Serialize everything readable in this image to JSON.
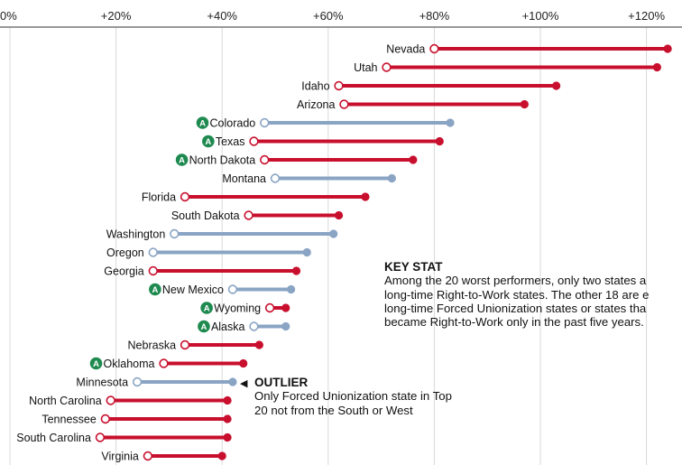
{
  "chart_data": {
    "type": "dumbbell",
    "x_ticks": [
      "0%",
      "+20%",
      "+40%",
      "+60%",
      "+80%",
      "+100%",
      "+120%"
    ],
    "x_tick_values": [
      0,
      20,
      40,
      60,
      80,
      100,
      120
    ],
    "xlim": [
      0,
      124
    ],
    "grid": true,
    "colors": {
      "red": "#c8102e",
      "blue": "#8aa4c4",
      "badge": "#1e8a50"
    },
    "rows": [
      {
        "state": "Nevada",
        "start": 80,
        "end": 124,
        "color": "red",
        "badge": false
      },
      {
        "state": "Utah",
        "start": 71,
        "end": 122,
        "color": "red",
        "badge": false
      },
      {
        "state": "Idaho",
        "start": 62,
        "end": 103,
        "color": "red",
        "badge": false
      },
      {
        "state": "Arizona",
        "start": 63,
        "end": 97,
        "color": "red",
        "badge": false
      },
      {
        "state": "Colorado",
        "start": 48,
        "end": 83,
        "color": "blue",
        "badge": true
      },
      {
        "state": "Texas",
        "start": 46,
        "end": 81,
        "color": "red",
        "badge": true
      },
      {
        "state": "North Dakota",
        "start": 48,
        "end": 76,
        "color": "red",
        "badge": true
      },
      {
        "state": "Montana",
        "start": 50,
        "end": 72,
        "color": "blue",
        "badge": false
      },
      {
        "state": "Florida",
        "start": 33,
        "end": 67,
        "color": "red",
        "badge": false
      },
      {
        "state": "South Dakota",
        "start": 45,
        "end": 62,
        "color": "red",
        "badge": false
      },
      {
        "state": "Washington",
        "start": 31,
        "end": 61,
        "color": "blue",
        "badge": false
      },
      {
        "state": "Oregon",
        "start": 27,
        "end": 56,
        "color": "blue",
        "badge": false
      },
      {
        "state": "Georgia",
        "start": 27,
        "end": 54,
        "color": "red",
        "badge": false
      },
      {
        "state": "New Mexico",
        "start": 42,
        "end": 53,
        "color": "blue",
        "badge": true
      },
      {
        "state": "Wyoming",
        "start": 49,
        "end": 52,
        "color": "red",
        "badge": true
      },
      {
        "state": "Alaska",
        "start": 46,
        "end": 52,
        "color": "blue",
        "badge": true
      },
      {
        "state": "Nebraska",
        "start": 33,
        "end": 47,
        "color": "red",
        "badge": false
      },
      {
        "state": "Oklahoma",
        "start": 29,
        "end": 44,
        "color": "red",
        "badge": true
      },
      {
        "state": "Minnesota",
        "start": 24,
        "end": 42,
        "color": "blue",
        "badge": false
      },
      {
        "state": "North Carolina",
        "start": 19,
        "end": 41,
        "color": "red",
        "badge": false
      },
      {
        "state": "Tennessee",
        "start": 18,
        "end": 41,
        "color": "red",
        "badge": false
      },
      {
        "state": "South Carolina",
        "start": 17,
        "end": 41,
        "color": "red",
        "badge": false
      },
      {
        "state": "Virginia",
        "start": 26,
        "end": 40,
        "color": "red",
        "badge": false
      }
    ],
    "badge_text": "A"
  },
  "key_stat": {
    "title": "KEY STAT",
    "lines": [
      "Among the 20 worst performers, only two states a",
      "long-time Right-to-Work states. The other 18 are e",
      "long-time Forced Unionization states or states tha",
      "became Right-to-Work only in the past five years."
    ]
  },
  "outlier": {
    "arrow": "◀",
    "title": "OUTLIER",
    "lines": [
      "Only Forced Unionization state in Top",
      "20 not from the South or West"
    ]
  }
}
